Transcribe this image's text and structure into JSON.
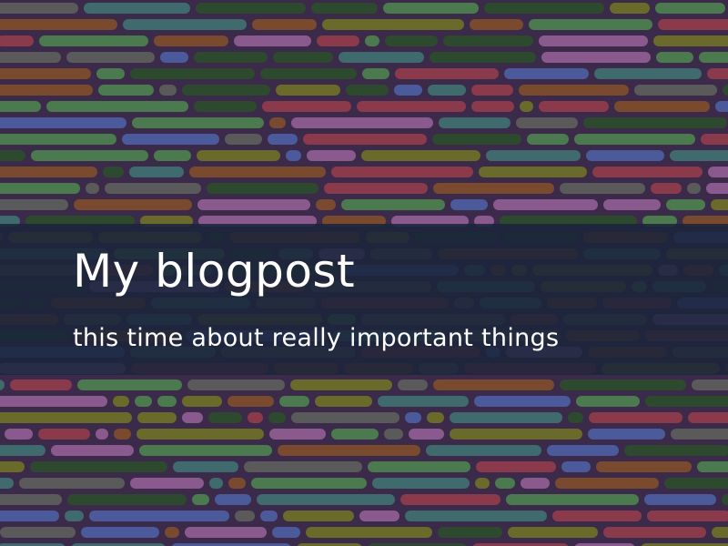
{
  "hero": {
    "title": "My blogpost",
    "subtitle": "this time about really important things",
    "background": {
      "base_color": "#3b2a4a",
      "bar_colors": [
        "#8a5a8e",
        "#3f6a6e",
        "#4a7a4e",
        "#7a4a2e",
        "#6a6a2a",
        "#4a5a9a",
        "#8a3a4a",
        "#2e4a2e",
        "#5a5a5a"
      ]
    },
    "banner_color": "#1a243a"
  }
}
